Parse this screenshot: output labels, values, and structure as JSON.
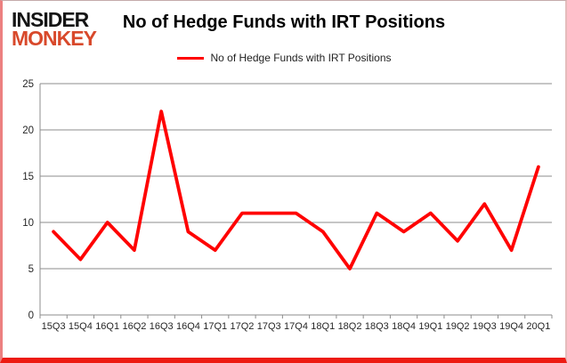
{
  "logo": {
    "line1": "INSIDER",
    "line2": "MONKEY"
  },
  "header": {
    "title": "No of Hedge Funds with IRT Positions"
  },
  "legend": {
    "label": "No of Hedge Funds with IRT Positions",
    "swatch_color": "#ff0000"
  },
  "chart_data": {
    "type": "line",
    "title": "No of Hedge Funds with IRT Positions",
    "categories": [
      "15Q3",
      "15Q4",
      "16Q1",
      "16Q2",
      "16Q3",
      "16Q4",
      "17Q1",
      "17Q2",
      "17Q3",
      "17Q4",
      "18Q1",
      "18Q2",
      "18Q3",
      "18Q4",
      "19Q1",
      "19Q2",
      "19Q3",
      "19Q4",
      "20Q1"
    ],
    "values": [
      9,
      6,
      10,
      7,
      22,
      9,
      7,
      11,
      11,
      11,
      9,
      5,
      11,
      9,
      11,
      8,
      12,
      7,
      16
    ],
    "series_name": "No of Hedge Funds with IRT Positions",
    "xlabel": "",
    "ylabel": "",
    "ylim": [
      0,
      25
    ],
    "yticks": [
      0,
      5,
      10,
      15,
      20,
      25
    ],
    "grid": true,
    "legend_position": "top-center",
    "line_color": "#ff0000"
  },
  "colors": {
    "line": "#ff0000",
    "gridline": "#8c8c8c",
    "axis_text": "#262626",
    "logo_black": "#141414",
    "logo_red": "#d8492b",
    "frame_bottom": "#ed1b12"
  }
}
